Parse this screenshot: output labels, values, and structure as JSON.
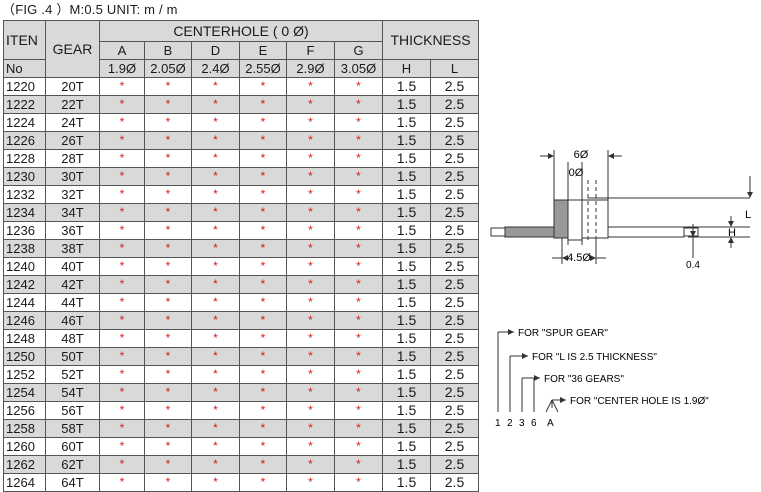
{
  "caption": "（FIG .4 ）M:0.5  UNIT: m / m",
  "table": {
    "header": {
      "item_label_1": "ITEN",
      "item_label_2": "No",
      "gear_label": "GEAR",
      "centerhole_label": "CENTERHOLE ( 0 Ø)",
      "thickness_label": "THICKNESS",
      "hole_letters": [
        "A",
        "B",
        "D",
        "E",
        "F",
        "G"
      ],
      "hole_sizes": [
        "1.9Ø",
        "2.05Ø",
        "2.4Ø",
        "2.55Ø",
        "2.9Ø",
        "3.05Ø"
      ],
      "thickness_cols": [
        "H",
        "L"
      ]
    },
    "mark": "*",
    "rows": [
      {
        "item": "1220",
        "gear": "20T",
        "h": "1.5",
        "l": "2.5"
      },
      {
        "item": "1222",
        "gear": "22T",
        "h": "1.5",
        "l": "2.5"
      },
      {
        "item": "1224",
        "gear": "24T",
        "h": "1.5",
        "l": "2.5"
      },
      {
        "item": "1226",
        "gear": "26T",
        "h": "1.5",
        "l": "2.5"
      },
      {
        "item": "1228",
        "gear": "28T",
        "h": "1.5",
        "l": "2.5"
      },
      {
        "item": "1230",
        "gear": "30T",
        "h": "1.5",
        "l": "2.5"
      },
      {
        "item": "1232",
        "gear": "32T",
        "h": "1.5",
        "l": "2.5"
      },
      {
        "item": "1234",
        "gear": "34T",
        "h": "1.5",
        "l": "2.5"
      },
      {
        "item": "1236",
        "gear": "36T",
        "h": "1.5",
        "l": "2.5"
      },
      {
        "item": "1238",
        "gear": "38T",
        "h": "1.5",
        "l": "2.5"
      },
      {
        "item": "1240",
        "gear": "40T",
        "h": "1.5",
        "l": "2.5"
      },
      {
        "item": "1242",
        "gear": "42T",
        "h": "1.5",
        "l": "2.5"
      },
      {
        "item": "1244",
        "gear": "44T",
        "h": "1.5",
        "l": "2.5"
      },
      {
        "item": "1246",
        "gear": "46T",
        "h": "1.5",
        "l": "2.5"
      },
      {
        "item": "1248",
        "gear": "48T",
        "h": "1.5",
        "l": "2.5"
      },
      {
        "item": "1250",
        "gear": "50T",
        "h": "1.5",
        "l": "2.5"
      },
      {
        "item": "1252",
        "gear": "52T",
        "h": "1.5",
        "l": "2.5"
      },
      {
        "item": "1254",
        "gear": "54T",
        "h": "1.5",
        "l": "2.5"
      },
      {
        "item": "1256",
        "gear": "56T",
        "h": "1.5",
        "l": "2.5"
      },
      {
        "item": "1258",
        "gear": "58T",
        "h": "1.5",
        "l": "2.5"
      },
      {
        "item": "1260",
        "gear": "60T",
        "h": "1.5",
        "l": "2.5"
      },
      {
        "item": "1262",
        "gear": "62T",
        "h": "1.5",
        "l": "2.5"
      },
      {
        "item": "1264",
        "gear": "64T",
        "h": "1.5",
        "l": "2.5"
      }
    ]
  },
  "diagram": {
    "dim_6": "6Ø",
    "dim_0": "0Ø",
    "dim_45": "4.5Ø",
    "dim_L": "L",
    "dim_H": "H",
    "dim_04": "0.4"
  },
  "legend": {
    "lines": [
      "FOR  \"SPUR GEAR\"",
      "FOR  \"L IS 2.5 THICKNESS\"",
      "FOR  \"36 GEARS\"",
      "FOR  \"CENTER HOLE IS 1.9Ø\""
    ],
    "codes": [
      "1",
      "2",
      "3",
      "6",
      "A"
    ]
  },
  "colors": {
    "mark": "#d81b1b",
    "shade": "#d9d9d9",
    "border": "#555555"
  }
}
